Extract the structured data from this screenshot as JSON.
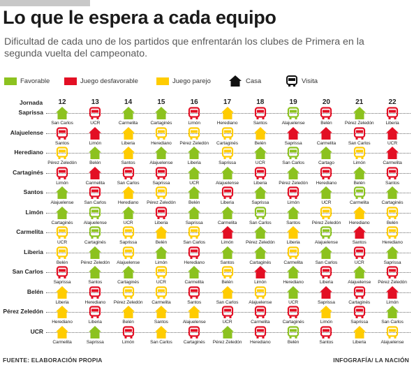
{
  "header": {
    "title": "Lo que le espera a cada equipo",
    "subtitle": "Dificultad de cada uno de los partidos que enfrentarán los clubes de Primera en la segunda vuelta del campeonato."
  },
  "legend": {
    "favorable": "Favorable",
    "unfavorable": "Juego desfavorable",
    "even": "Juego parejo",
    "home": "Casa",
    "away": "Visita"
  },
  "colors": {
    "F": "#8cc21f",
    "D": "#e30f24",
    "P": "#ffcc00",
    "icon_dark": "#111111"
  },
  "icons": {
    "home": "house-icon",
    "away": "bus-icon"
  },
  "footer": {
    "source": "FUENTE: ELABORACIÓN PROPIA",
    "credit": "INFOGRAFÍA/ LA NACIÓN"
  },
  "chart_data": {
    "type": "table",
    "row_header": "Jornada",
    "jornadas": [
      "12",
      "13",
      "14",
      "15",
      "16",
      "17",
      "18",
      "19",
      "20",
      "21",
      "22"
    ],
    "rating_codes": {
      "F": "Favorable",
      "D": "Juego desfavorable",
      "P": "Juego parejo"
    },
    "venue_codes": {
      "C": "Casa",
      "V": "Visita"
    },
    "teams": [
      {
        "name": "Saprissa",
        "games": [
          {
            "opp": "San Carlos",
            "venue": "C",
            "rating": "F"
          },
          {
            "opp": "UCR",
            "venue": "V",
            "rating": "D"
          },
          {
            "opp": "Carmelita",
            "venue": "C",
            "rating": "F"
          },
          {
            "opp": "Cartaginés",
            "venue": "C",
            "rating": "F"
          },
          {
            "opp": "Limón",
            "venue": "V",
            "rating": "D"
          },
          {
            "opp": "Herediano",
            "venue": "C",
            "rating": "P"
          },
          {
            "opp": "Santos",
            "venue": "V",
            "rating": "D"
          },
          {
            "opp": "Alajuelense",
            "venue": "V",
            "rating": "F"
          },
          {
            "opp": "Belén",
            "venue": "V",
            "rating": "D"
          },
          {
            "opp": "Pérez Zeledón",
            "venue": "C",
            "rating": "F"
          },
          {
            "opp": "Liberia",
            "venue": "V",
            "rating": "D"
          }
        ]
      },
      {
        "name": "Alajuelense",
        "games": [
          {
            "opp": "Santos",
            "venue": "V",
            "rating": "D"
          },
          {
            "opp": "Limón",
            "venue": "C",
            "rating": "D"
          },
          {
            "opp": "Liberia",
            "venue": "C",
            "rating": "P"
          },
          {
            "opp": "Herediano",
            "venue": "V",
            "rating": "P"
          },
          {
            "opp": "Pérez Zeledón",
            "venue": "V",
            "rating": "P"
          },
          {
            "opp": "Cartaginés",
            "venue": "V",
            "rating": "P"
          },
          {
            "opp": "Belén",
            "venue": "C",
            "rating": "P"
          },
          {
            "opp": "Saprissa",
            "venue": "C",
            "rating": "D"
          },
          {
            "opp": "Carmelita",
            "venue": "C",
            "rating": "D"
          },
          {
            "opp": "San Carlos",
            "venue": "V",
            "rating": "D"
          },
          {
            "opp": "UCR",
            "venue": "C",
            "rating": "D"
          }
        ]
      },
      {
        "name": "Herediano",
        "games": [
          {
            "opp": "Pérez Zeledón",
            "venue": "V",
            "rating": "P"
          },
          {
            "opp": "Belén",
            "venue": "C",
            "rating": "F"
          },
          {
            "opp": "Santos",
            "venue": "C",
            "rating": "P"
          },
          {
            "opp": "Alajuelense",
            "venue": "C",
            "rating": "F"
          },
          {
            "opp": "Liberia",
            "venue": "C",
            "rating": "F"
          },
          {
            "opp": "Saprissa",
            "venue": "V",
            "rating": "P"
          },
          {
            "opp": "UCR",
            "venue": "C",
            "rating": "F"
          },
          {
            "opp": "San Carlos",
            "venue": "V",
            "rating": "F"
          },
          {
            "opp": "Cartago",
            "venue": "C",
            "rating": "F"
          },
          {
            "opp": "Limón",
            "venue": "V",
            "rating": "P"
          },
          {
            "opp": "Carmelita",
            "venue": "C",
            "rating": "D"
          }
        ]
      },
      {
        "name": "Cartaginés",
        "games": [
          {
            "opp": "Limón",
            "venue": "V",
            "rating": "D"
          },
          {
            "opp": "Carmelita",
            "venue": "C",
            "rating": "D"
          },
          {
            "opp": "San Carlos",
            "venue": "V",
            "rating": "D"
          },
          {
            "opp": "Saprissa",
            "venue": "V",
            "rating": "D"
          },
          {
            "opp": "UCR",
            "venue": "C",
            "rating": "F"
          },
          {
            "opp": "Alajuelense",
            "venue": "C",
            "rating": "F"
          },
          {
            "opp": "Liberia",
            "venue": "V",
            "rating": "D"
          },
          {
            "opp": "Pérez Zeledón",
            "venue": "C",
            "rating": "F"
          },
          {
            "opp": "Herediano",
            "venue": "V",
            "rating": "D"
          },
          {
            "opp": "Belén",
            "venue": "C",
            "rating": "F"
          },
          {
            "opp": "Santos",
            "venue": "V",
            "rating": "D"
          }
        ]
      },
      {
        "name": "Santos",
        "games": [
          {
            "opp": "Alajuelense",
            "venue": "C",
            "rating": "F"
          },
          {
            "opp": "San Carlos",
            "venue": "V",
            "rating": "D"
          },
          {
            "opp": "Herediano",
            "venue": "C",
            "rating": "P"
          },
          {
            "opp": "Pérez Zeledón",
            "venue": "V",
            "rating": "P"
          },
          {
            "opp": "Belén",
            "venue": "C",
            "rating": "F"
          },
          {
            "opp": "Liberia",
            "venue": "V",
            "rating": "D"
          },
          {
            "opp": "Saprissa",
            "venue": "C",
            "rating": "F"
          },
          {
            "opp": "Limón",
            "venue": "V",
            "rating": "D"
          },
          {
            "opp": "UCR",
            "venue": "C",
            "rating": "F"
          },
          {
            "opp": "Carmelita",
            "venue": "V",
            "rating": "F"
          },
          {
            "opp": "Cartaginés",
            "venue": "C",
            "rating": "F"
          }
        ]
      },
      {
        "name": "Limón",
        "games": [
          {
            "opp": "Cartaginés",
            "venue": "C",
            "rating": "F"
          },
          {
            "opp": "Alajuelense",
            "venue": "V",
            "rating": "F"
          },
          {
            "opp": "UCR",
            "venue": "C",
            "rating": "F"
          },
          {
            "opp": "Liberia",
            "venue": "V",
            "rating": "D"
          },
          {
            "opp": "Saprissa",
            "venue": "C",
            "rating": "F"
          },
          {
            "opp": "Carmelita",
            "venue": "C",
            "rating": "F"
          },
          {
            "opp": "San Carlos",
            "venue": "V",
            "rating": "F"
          },
          {
            "opp": "Santos",
            "venue": "C",
            "rating": "F"
          },
          {
            "opp": "Pérez Zeledón",
            "venue": "V",
            "rating": "P"
          },
          {
            "opp": "Herediano",
            "venue": "C",
            "rating": "P"
          },
          {
            "opp": "Belén",
            "venue": "V",
            "rating": "P"
          }
        ]
      },
      {
        "name": "Carmelita",
        "games": [
          {
            "opp": "UCR",
            "venue": "V",
            "rating": "P"
          },
          {
            "opp": "Cartaginés",
            "venue": "V",
            "rating": "F"
          },
          {
            "opp": "Saprissa",
            "venue": "V",
            "rating": "P"
          },
          {
            "opp": "Belén",
            "venue": "C",
            "rating": "P"
          },
          {
            "opp": "San Carlos",
            "venue": "V",
            "rating": "P"
          },
          {
            "opp": "Limón",
            "venue": "C",
            "rating": "D"
          },
          {
            "opp": "Pérez Zeledón",
            "venue": "C",
            "rating": "F"
          },
          {
            "opp": "Liberia",
            "venue": "C",
            "rating": "P"
          },
          {
            "opp": "Alajuelense",
            "venue": "V",
            "rating": "F"
          },
          {
            "opp": "Santos",
            "venue": "C",
            "rating": "D"
          },
          {
            "opp": "Herediano",
            "venue": "V",
            "rating": "P"
          }
        ]
      },
      {
        "name": "Liberia",
        "games": [
          {
            "opp": "Belén",
            "venue": "V",
            "rating": "P"
          },
          {
            "opp": "Pérez Zeledón",
            "venue": "C",
            "rating": "F"
          },
          {
            "opp": "Alajuelense",
            "venue": "V",
            "rating": "P"
          },
          {
            "opp": "Limón",
            "venue": "C",
            "rating": "F"
          },
          {
            "opp": "Herediano",
            "venue": "V",
            "rating": "D"
          },
          {
            "opp": "Santos",
            "venue": "C",
            "rating": "F"
          },
          {
            "opp": "Cartaginés",
            "venue": "C",
            "rating": "F"
          },
          {
            "opp": "Carmelita",
            "venue": "V",
            "rating": "P"
          },
          {
            "opp": "San Carlos",
            "venue": "C",
            "rating": "F"
          },
          {
            "opp": "UCR",
            "venue": "V",
            "rating": "D"
          },
          {
            "opp": "Saprissa",
            "venue": "C",
            "rating": "F"
          }
        ]
      },
      {
        "name": "San Carlos",
        "games": [
          {
            "opp": "Saprissa",
            "venue": "V",
            "rating": "D"
          },
          {
            "opp": "Santos",
            "venue": "C",
            "rating": "F"
          },
          {
            "opp": "Cartaginés",
            "venue": "C",
            "rating": "F"
          },
          {
            "opp": "UCR",
            "venue": "V",
            "rating": "P"
          },
          {
            "opp": "Carmelita",
            "venue": "C",
            "rating": "F"
          },
          {
            "opp": "Belén",
            "venue": "V",
            "rating": "P"
          },
          {
            "opp": "Limón",
            "venue": "C",
            "rating": "D"
          },
          {
            "opp": "Herediano",
            "venue": "C",
            "rating": "F"
          },
          {
            "opp": "Liberia",
            "venue": "V",
            "rating": "D"
          },
          {
            "opp": "Alajuelense",
            "venue": "C",
            "rating": "F"
          },
          {
            "opp": "Pérez Zeledón",
            "venue": "V",
            "rating": "D"
          }
        ]
      },
      {
        "name": "Belén",
        "games": [
          {
            "opp": "Liberia",
            "venue": "C",
            "rating": "P"
          },
          {
            "opp": "Herediano",
            "venue": "V",
            "rating": "D"
          },
          {
            "opp": "Pérez Zeledón",
            "venue": "V",
            "rating": "P"
          },
          {
            "opp": "Carmelita",
            "venue": "V",
            "rating": "P"
          },
          {
            "opp": "Santos",
            "venue": "V",
            "rating": "D"
          },
          {
            "opp": "San Carlos",
            "venue": "C",
            "rating": "P"
          },
          {
            "opp": "Alajuelense",
            "venue": "V",
            "rating": "P"
          },
          {
            "opp": "UCR",
            "venue": "C",
            "rating": "F"
          },
          {
            "opp": "Saprissa",
            "venue": "C",
            "rating": "D"
          },
          {
            "opp": "Cartaginés",
            "venue": "V",
            "rating": "D"
          },
          {
            "opp": "Limón",
            "venue": "C",
            "rating": "D"
          }
        ]
      },
      {
        "name": "Pérez Zeledón",
        "games": [
          {
            "opp": "Herediano",
            "venue": "C",
            "rating": "P"
          },
          {
            "opp": "Liberia",
            "venue": "V",
            "rating": "D"
          },
          {
            "opp": "Belén",
            "venue": "C",
            "rating": "P"
          },
          {
            "opp": "Santos",
            "venue": "C",
            "rating": "P"
          },
          {
            "opp": "Alajuelense",
            "venue": "C",
            "rating": "P"
          },
          {
            "opp": "UCR",
            "venue": "V",
            "rating": "D"
          },
          {
            "opp": "Carmelita",
            "venue": "V",
            "rating": "D"
          },
          {
            "opp": "Cartaginés",
            "venue": "V",
            "rating": "D"
          },
          {
            "opp": "Limón",
            "venue": "C",
            "rating": "P"
          },
          {
            "opp": "Saprissa",
            "venue": "V",
            "rating": "D"
          },
          {
            "opp": "San Carlos",
            "venue": "C",
            "rating": "F"
          }
        ]
      },
      {
        "name": "UCR",
        "games": [
          {
            "opp": "Carmelita",
            "venue": "C",
            "rating": "P"
          },
          {
            "opp": "Saprissa",
            "venue": "C",
            "rating": "F"
          },
          {
            "opp": "Limón",
            "venue": "V",
            "rating": "D"
          },
          {
            "opp": "San Carlos",
            "venue": "C",
            "rating": "P"
          },
          {
            "opp": "Cartaginés",
            "venue": "V",
            "rating": "D"
          },
          {
            "opp": "Pérez Zeledón",
            "venue": "C",
            "rating": "F"
          },
          {
            "opp": "Herediano",
            "venue": "V",
            "rating": "D"
          },
          {
            "opp": "Belén",
            "venue": "V",
            "rating": "F"
          },
          {
            "opp": "Santos",
            "venue": "V",
            "rating": "D"
          },
          {
            "opp": "Liberia",
            "venue": "C",
            "rating": "P"
          },
          {
            "opp": "Alajuelense",
            "venue": "V",
            "rating": "P"
          }
        ]
      }
    ]
  }
}
